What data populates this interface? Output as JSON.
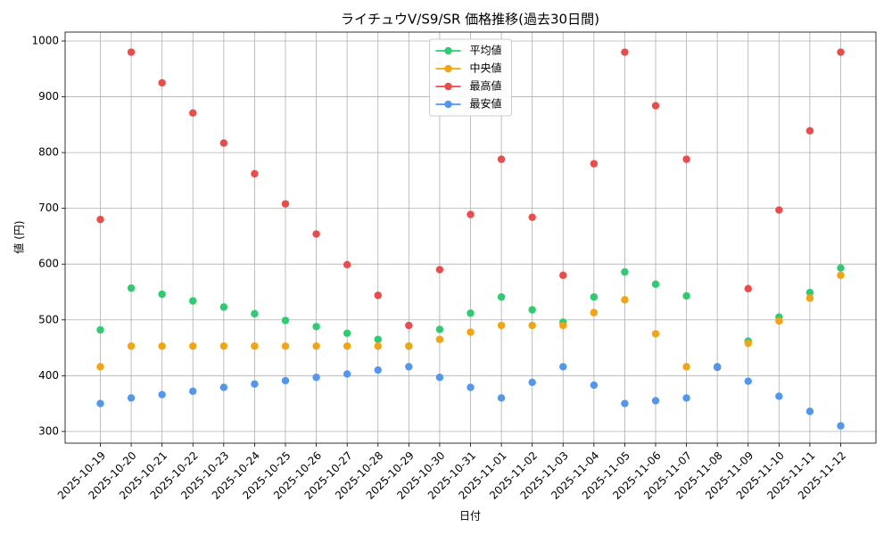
{
  "chart_data": {
    "type": "line",
    "title": "ライチュウV/S9/SR 価格推移(過去30日間)",
    "x_label": "日付",
    "y_label": "値 (円)",
    "categories": [
      "2025-10-19",
      "2025-10-20",
      "2025-10-21",
      "2025-10-22",
      "2025-10-23",
      "2025-10-24",
      "2025-10-25",
      "2025-10-26",
      "2025-10-27",
      "2025-10-28",
      "2025-10-29",
      "2025-10-30",
      "2025-10-31",
      "2025-11-01",
      "2025-11-02",
      "2025-11-03",
      "2025-11-04",
      "2025-11-05",
      "2025-11-06",
      "2025-11-07",
      "2025-11-08",
      "2025-11-09",
      "2025-11-10",
      "2025-11-11",
      "2025-11-12"
    ],
    "series": [
      {
        "name": "平均値",
        "color": "#2ecc71",
        "values": [
          482,
          557,
          546,
          534,
          523,
          511,
          499,
          488,
          476,
          465,
          453,
          483,
          512,
          541,
          518,
          496,
          541,
          586,
          564,
          543,
          415,
          462,
          505,
          549,
          593
        ]
      },
      {
        "name": "中央値",
        "color": "#f5a30f",
        "values": [
          416,
          453,
          453,
          453,
          453,
          453,
          453,
          453,
          453,
          453,
          453,
          465,
          478,
          490,
          490,
          490,
          513,
          536,
          475,
          416,
          416,
          458,
          498,
          539,
          580
        ]
      },
      {
        "name": "最高値",
        "color": "#ef4a4a",
        "values": [
          680,
          980,
          925,
          871,
          817,
          762,
          708,
          654,
          599,
          544,
          490,
          590,
          689,
          788,
          684,
          580,
          780,
          980,
          884,
          788,
          415,
          556,
          697,
          839,
          980
        ]
      },
      {
        "name": "最安値",
        "color": "#4f97f0",
        "values": [
          350,
          360,
          366,
          372,
          379,
          385,
          391,
          397,
          403,
          410,
          416,
          397,
          379,
          360,
          388,
          416,
          383,
          350,
          355,
          360,
          416,
          390,
          363,
          336,
          310
        ]
      }
    ],
    "ylim": [
      279,
      1016
    ],
    "yticks": [
      300,
      400,
      500,
      600,
      700,
      800,
      900,
      1000
    ],
    "grid": true,
    "legend": "upper center"
  }
}
